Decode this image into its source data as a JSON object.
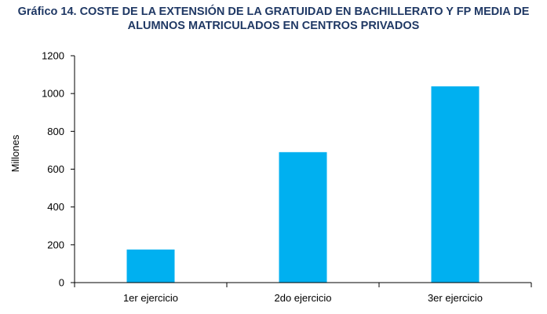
{
  "title": {
    "line1": "Gráfico 14. COSTE DE LA EXTENSIÓN DE LA GRATUIDAD EN BACHILLERATO Y FP MEDIA DE",
    "line2": "ALUMNOS MATRICULADOS EN CENTROS PRIVADOS"
  },
  "colors": {
    "bar": "#00b0f0",
    "axis": "#000000",
    "title": "#1f3864"
  },
  "chart_data": {
    "type": "bar",
    "title": "Gráfico 14. COSTE DE LA EXTENSIÓN DE LA GRATUIDAD EN BACHILLERATO Y FP MEDIA DE ALUMNOS MATRICULADOS EN CENTROS PRIVADOS",
    "categories": [
      "1er ejercicio",
      "2do ejercicio",
      "3er ejercicio"
    ],
    "values": [
      175,
      690,
      1038
    ],
    "xlabel": "",
    "ylabel": "Millones",
    "ylim": [
      0,
      1200
    ],
    "yticks": [
      0,
      200,
      400,
      600,
      800,
      1000,
      1200
    ],
    "grid": false,
    "legend": "none"
  }
}
